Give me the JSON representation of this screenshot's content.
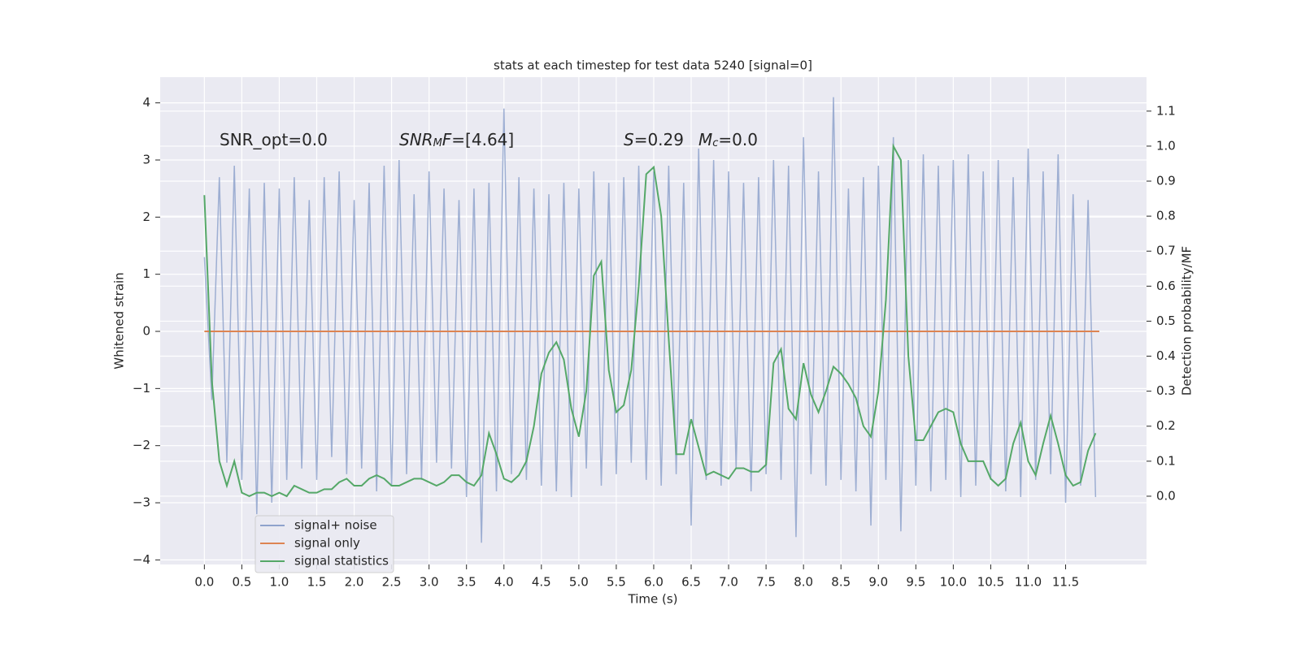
{
  "chart_data": {
    "type": "line",
    "title": "stats at each timestep for test data 5240 [signal=0]",
    "xlabel": "Time (s)",
    "ylabel": "Whitened strain",
    "y2label": "Detection probability/MF",
    "annotations": [
      {
        "segments": [
          {
            "text": "SNR_opt=0.0",
            "style": "normal"
          }
        ]
      },
      {
        "segments": [
          {
            "text": "SNR",
            "style": "italic"
          },
          {
            "text": "M",
            "style": "sub"
          },
          {
            "text": "F",
            "style": "italic"
          },
          {
            "text": "=[4.64]",
            "style": "normal"
          }
        ]
      },
      {
        "segments": [
          {
            "text": "S",
            "style": "italic"
          },
          {
            "text": "=0.29",
            "style": "normal"
          }
        ]
      },
      {
        "segments": [
          {
            "text": "M",
            "style": "italic"
          },
          {
            "text": "c",
            "style": "sub"
          },
          {
            "text": "=0.0",
            "style": "normal"
          }
        ]
      }
    ],
    "x": [
      0,
      0.1,
      0.2,
      0.3,
      0.4,
      0.5,
      0.6,
      0.7,
      0.8,
      0.9,
      1,
      1.1,
      1.2,
      1.3,
      1.4,
      1.5,
      1.6,
      1.7,
      1.8,
      1.9,
      2,
      2.1,
      2.2,
      2.3,
      2.4,
      2.5,
      2.6,
      2.7,
      2.8,
      2.9,
      3,
      3.1,
      3.2,
      3.3,
      3.4,
      3.5,
      3.6,
      3.7,
      3.8,
      3.9,
      4,
      4.1,
      4.2,
      4.3,
      4.4,
      4.5,
      4.6,
      4.7,
      4.8,
      4.9,
      5,
      5.1,
      5.2,
      5.3,
      5.4,
      5.5,
      5.6,
      5.7,
      5.8,
      5.9,
      6,
      6.1,
      6.2,
      6.3,
      6.4,
      6.5,
      6.6,
      6.7,
      6.8,
      6.9,
      7,
      7.1,
      7.2,
      7.3,
      7.4,
      7.5,
      7.6,
      7.7,
      7.8,
      7.9,
      8,
      8.1,
      8.2,
      8.3,
      8.4,
      8.5,
      8.6,
      8.7,
      8.8,
      8.9,
      9,
      9.1,
      9.2,
      9.3,
      9.4,
      9.5,
      9.6,
      9.7,
      9.8,
      9.9,
      10,
      10.1,
      10.2,
      10.3,
      10.4,
      10.5,
      10.6,
      10.7,
      10.8,
      10.9,
      11,
      11.1,
      11.2,
      11.3,
      11.4,
      11.5,
      11.6,
      11.7,
      11.8,
      11.9
    ],
    "series": [
      {
        "name": "signal+ noise",
        "color": "#8fa3cc",
        "axis": "y",
        "values": [
          1.3,
          -1.2,
          2.7,
          -2.3,
          2.9,
          -2.6,
          2.5,
          -3.2,
          2.6,
          -3.0,
          2.5,
          -2.6,
          2.7,
          -2.4,
          2.3,
          -2.6,
          2.7,
          -2.2,
          2.8,
          -2.5,
          2.3,
          -2.4,
          2.6,
          -2.8,
          2.9,
          -2.7,
          3.0,
          -2.5,
          2.4,
          -2.6,
          2.8,
          -2.3,
          2.5,
          -2.4,
          2.3,
          -2.9,
          2.5,
          -3.7,
          2.6,
          -2.8,
          3.9,
          -2.5,
          2.7,
          -2.6,
          2.5,
          -2.7,
          2.4,
          -2.8,
          2.6,
          -2.9,
          2.5,
          -2.4,
          2.8,
          -2.7,
          2.6,
          -2.5,
          2.7,
          -2.3,
          2.9,
          -2.6,
          2.8,
          -2.7,
          2.9,
          -2.5,
          2.6,
          -3.4,
          3.2,
          -2.6,
          3.0,
          -2.7,
          2.8,
          -2.4,
          2.6,
          -2.8,
          2.7,
          -2.5,
          3.0,
          -2.6,
          2.9,
          -3.6,
          3.4,
          -2.5,
          2.8,
          -2.7,
          4.1,
          -2.6,
          2.5,
          -2.8,
          2.7,
          -3.4,
          2.9,
          -2.6,
          3.4,
          -3.5,
          3.0,
          -2.7,
          3.1,
          -2.8,
          2.9,
          -2.6,
          3.0,
          -2.9,
          3.1,
          -2.7,
          2.8,
          -2.6,
          3.0,
          -2.8,
          2.7,
          -2.9,
          3.2,
          -2.6,
          2.8,
          -2.5,
          3.1,
          -3.0,
          2.4,
          -2.7,
          2.3,
          -2.9
        ]
      },
      {
        "name": "signal only",
        "color": "#dd8452",
        "axis": "y",
        "x": [
          0,
          11.95
        ],
        "values": [
          0,
          0
        ]
      },
      {
        "name": "signal statistics",
        "color": "#55a868",
        "axis": "y2",
        "values": [
          0.86,
          0.33,
          0.1,
          0.03,
          0.1,
          0.01,
          0.0,
          0.01,
          0.01,
          0.0,
          0.01,
          0.0,
          0.03,
          0.02,
          0.01,
          0.01,
          0.02,
          0.02,
          0.04,
          0.05,
          0.03,
          0.03,
          0.05,
          0.06,
          0.05,
          0.03,
          0.03,
          0.04,
          0.05,
          0.05,
          0.04,
          0.03,
          0.04,
          0.06,
          0.06,
          0.04,
          0.03,
          0.06,
          0.18,
          0.12,
          0.05,
          0.04,
          0.06,
          0.1,
          0.2,
          0.35,
          0.41,
          0.44,
          0.39,
          0.25,
          0.17,
          0.3,
          0.63,
          0.67,
          0.36,
          0.24,
          0.26,
          0.36,
          0.6,
          0.92,
          0.94,
          0.8,
          0.45,
          0.12,
          0.12,
          0.22,
          0.14,
          0.06,
          0.07,
          0.06,
          0.05,
          0.08,
          0.08,
          0.07,
          0.07,
          0.09,
          0.38,
          0.42,
          0.25,
          0.22,
          0.38,
          0.29,
          0.24,
          0.3,
          0.37,
          0.35,
          0.32,
          0.28,
          0.2,
          0.17,
          0.3,
          0.56,
          1.0,
          0.96,
          0.4,
          0.16,
          0.16,
          0.2,
          0.24,
          0.25,
          0.24,
          0.15,
          0.1,
          0.1,
          0.1,
          0.05,
          0.03,
          0.05,
          0.15,
          0.21,
          0.1,
          0.06,
          0.15,
          0.23,
          0.15,
          0.06,
          0.03,
          0.04,
          0.13,
          0.18
        ]
      }
    ],
    "xlim": [
      -0.59,
      12.58
    ],
    "ylim": [
      -4.08,
      4.45
    ],
    "y2lim": [
      -0.195,
      1.197
    ],
    "xticks": [
      {
        "value": 0,
        "label": "0.0"
      },
      0.5,
      {
        "value": 1,
        "label": "1.0"
      },
      1.5,
      {
        "value": 2,
        "label": "2.0"
      },
      2.5,
      {
        "value": 3,
        "label": "3.0"
      },
      3.5,
      {
        "value": 4,
        "label": "4.0"
      },
      4.5,
      {
        "value": 5,
        "label": "5.0"
      },
      5.5,
      {
        "value": 6,
        "label": "6.0"
      },
      6.5,
      {
        "value": 7,
        "label": "7.0"
      },
      7.5,
      {
        "value": 8,
        "label": "8.0"
      },
      8.5,
      {
        "value": 9,
        "label": "9.0"
      },
      9.5,
      {
        "value": 10,
        "label": "10.0"
      },
      10.5,
      {
        "value": 11,
        "label": "11.0"
      },
      11.5
    ],
    "yticks": [
      {
        "value": -4,
        "label": "−4"
      },
      {
        "value": -3,
        "label": "−3"
      },
      {
        "value": -2,
        "label": "−2"
      },
      {
        "value": -1,
        "label": "−1"
      },
      0,
      1,
      2,
      3,
      4
    ],
    "y2ticks": [
      {
        "value": 0,
        "label": "0.0"
      },
      0.1,
      0.2,
      0.3,
      0.4,
      0.5,
      0.6,
      0.7,
      0.8,
      0.9,
      {
        "value": 1,
        "label": "1.0"
      },
      1.1
    ],
    "grid": true,
    "legend": "lower left"
  }
}
